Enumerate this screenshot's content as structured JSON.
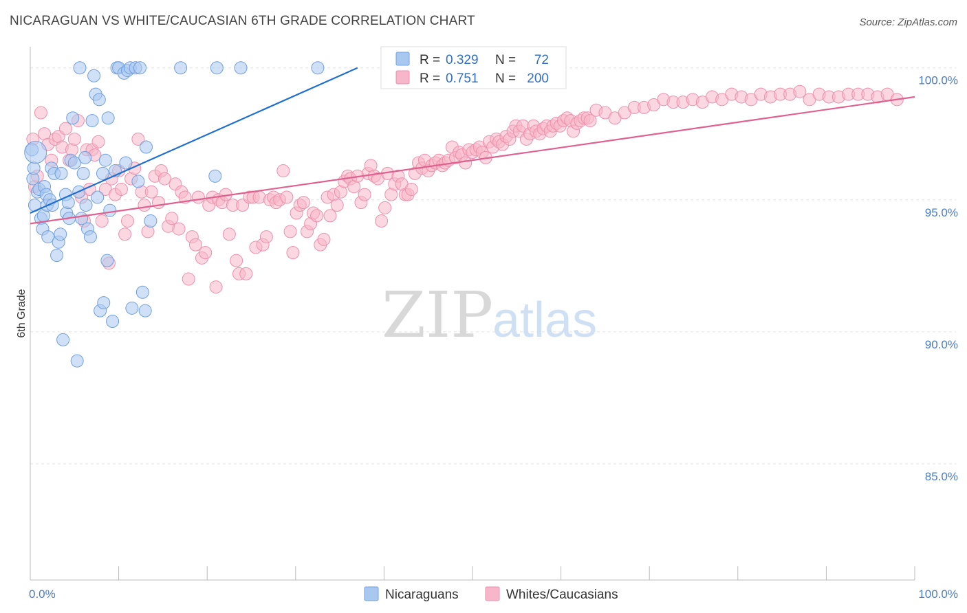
{
  "header": {
    "title": "NICARAGUAN VS WHITE/CAUCASIAN 6TH GRADE CORRELATION CHART",
    "source": "Source: ZipAtlas.com"
  },
  "watermark": {
    "zip": "ZIP",
    "atlas": "atlas"
  },
  "legend": {
    "r_label": "R =",
    "n_label": "N =",
    "rows": [
      {
        "r": "0.329",
        "n": "72"
      },
      {
        "r": "0.751",
        "n": "200"
      }
    ]
  },
  "colors": {
    "blue_fill": "#a9c8f0",
    "blue_stroke": "#6f9fe0",
    "blue_line": "#1f6fd0",
    "pink_fill": "#f7b6c9",
    "pink_stroke": "#ee8fac",
    "pink_line": "#e0608f",
    "tick_text": "#4a7cc7"
  },
  "chart_data": {
    "type": "scatter",
    "ylabel": "6th Grade",
    "xlabel": "",
    "xlim": [
      0,
      100
    ],
    "ylim": [
      80.6,
      100.8
    ],
    "x_tick_labels": [
      "0.0%",
      "100.0%"
    ],
    "y_ticks": [
      {
        "value": 100,
        "label": "100.0%"
      },
      {
        "value": 95,
        "label": "95.0%"
      },
      {
        "value": 90,
        "label": "90.0%"
      },
      {
        "value": 85,
        "label": "85.0%"
      }
    ],
    "grid": true,
    "legend_position": "top-center",
    "series": [
      {
        "name": "Nicaraguans",
        "color": "#a9c8f0",
        "r": 0.329,
        "n": 72,
        "trend": [
          [
            0,
            94.5
          ],
          [
            37,
            100.0
          ]
        ],
        "points": [
          [
            0.2,
            96.9
          ],
          [
            0.3,
            95.8
          ],
          [
            0.4,
            96.2
          ],
          [
            0.5,
            94.8
          ],
          [
            0.8,
            95.3
          ],
          [
            1.0,
            95.4
          ],
          [
            1.2,
            94.3
          ],
          [
            1.4,
            93.9
          ],
          [
            1.5,
            94.4
          ],
          [
            1.6,
            95.5
          ],
          [
            1.8,
            95.2
          ],
          [
            1.9,
            94.8
          ],
          [
            2.0,
            93.6
          ],
          [
            2.2,
            95.0
          ],
          [
            2.4,
            96.2
          ],
          [
            2.5,
            94.8
          ],
          [
            2.7,
            96.0
          ],
          [
            3.0,
            92.9
          ],
          [
            3.2,
            93.4
          ],
          [
            3.4,
            93.7
          ],
          [
            3.5,
            96.0
          ],
          [
            3.7,
            89.7
          ],
          [
            4.0,
            95.2
          ],
          [
            4.1,
            94.5
          ],
          [
            4.3,
            94.9
          ],
          [
            4.4,
            94.3
          ],
          [
            4.6,
            96.5
          ],
          [
            4.8,
            98.1
          ],
          [
            5.0,
            96.4
          ],
          [
            5.3,
            88.9
          ],
          [
            5.5,
            95.3
          ],
          [
            5.6,
            100.0
          ],
          [
            5.8,
            94.3
          ],
          [
            6.0,
            96.0
          ],
          [
            6.2,
            96.6
          ],
          [
            6.3,
            94.8
          ],
          [
            6.5,
            93.9
          ],
          [
            6.8,
            93.6
          ],
          [
            7.0,
            98.0
          ],
          [
            7.2,
            99.7
          ],
          [
            7.4,
            99.0
          ],
          [
            7.6,
            95.1
          ],
          [
            7.8,
            98.8
          ],
          [
            7.9,
            90.8
          ],
          [
            8.2,
            96.0
          ],
          [
            8.3,
            91.1
          ],
          [
            8.5,
            96.5
          ],
          [
            8.7,
            92.7
          ],
          [
            8.8,
            98.1
          ],
          [
            9.0,
            94.6
          ],
          [
            9.3,
            90.4
          ],
          [
            9.6,
            96.1
          ],
          [
            9.8,
            100.0
          ],
          [
            10.0,
            100.0
          ],
          [
            10.6,
            99.8
          ],
          [
            10.8,
            96.4
          ],
          [
            11.0,
            99.9
          ],
          [
            11.3,
            100.0
          ],
          [
            11.5,
            90.9
          ],
          [
            11.9,
            100.0
          ],
          [
            12.2,
            95.7
          ],
          [
            12.4,
            100.0
          ],
          [
            12.7,
            91.5
          ],
          [
            13.0,
            90.8
          ],
          [
            13.1,
            97.0
          ],
          [
            13.6,
            94.2
          ],
          [
            17.0,
            100.0
          ],
          [
            20.9,
            95.9
          ],
          [
            21.1,
            100.0
          ],
          [
            23.8,
            100.0
          ],
          [
            32.5,
            100.0
          ],
          [
            0.6,
            96.8
          ]
        ]
      },
      {
        "name": "Whites/Caucasians",
        "color": "#f7b6c9",
        "r": 0.751,
        "n": 200,
        "trend": [
          [
            0,
            94.1
          ],
          [
            100,
            98.9
          ]
        ],
        "points": [
          [
            0.3,
            97.3
          ],
          [
            0.5,
            95.5
          ],
          [
            0.8,
            95.9
          ],
          [
            1.2,
            98.3
          ],
          [
            1.6,
            97.5
          ],
          [
            2.0,
            97.1
          ],
          [
            2.4,
            96.5
          ],
          [
            2.8,
            97.3
          ],
          [
            3.2,
            97.4
          ],
          [
            3.6,
            97.0
          ],
          [
            4.0,
            97.7
          ],
          [
            4.4,
            96.5
          ],
          [
            4.7,
            96.9
          ],
          [
            5.0,
            97.3
          ],
          [
            5.4,
            98.0
          ],
          [
            5.8,
            95.1
          ],
          [
            6.1,
            94.2
          ],
          [
            6.4,
            96.9
          ],
          [
            6.7,
            95.4
          ],
          [
            7.0,
            96.9
          ],
          [
            7.3,
            96.7
          ],
          [
            7.7,
            97.2
          ],
          [
            8.1,
            94.2
          ],
          [
            8.5,
            95.4
          ],
          [
            8.9,
            92.6
          ],
          [
            9.2,
            95.8
          ],
          [
            9.6,
            95.2
          ],
          [
            10.0,
            96.1
          ],
          [
            10.3,
            95.4
          ],
          [
            10.7,
            93.7
          ],
          [
            11.0,
            94.2
          ],
          [
            11.4,
            95.8
          ],
          [
            11.8,
            96.2
          ],
          [
            12.2,
            97.3
          ],
          [
            12.6,
            95.3
          ],
          [
            12.9,
            94.8
          ],
          [
            13.3,
            93.8
          ],
          [
            13.7,
            95.3
          ],
          [
            14.1,
            95.9
          ],
          [
            14.5,
            94.9
          ],
          [
            14.8,
            96.1
          ],
          [
            15.2,
            95.8
          ],
          [
            15.6,
            94.0
          ],
          [
            16.0,
            94.3
          ],
          [
            16.4,
            95.6
          ],
          [
            16.8,
            93.9
          ],
          [
            17.1,
            95.3
          ],
          [
            17.5,
            95.1
          ],
          [
            17.9,
            92.0
          ],
          [
            18.3,
            93.6
          ],
          [
            18.7,
            93.3
          ],
          [
            19.0,
            95.1
          ],
          [
            19.4,
            92.8
          ],
          [
            19.8,
            93.0
          ],
          [
            20.2,
            94.8
          ],
          [
            20.6,
            95.1
          ],
          [
            21.0,
            91.7
          ],
          [
            21.3,
            95.0
          ],
          [
            21.7,
            94.9
          ],
          [
            22.1,
            95.2
          ],
          [
            22.5,
            93.7
          ],
          [
            22.9,
            94.8
          ],
          [
            23.3,
            92.7
          ],
          [
            23.6,
            92.2
          ],
          [
            24.0,
            94.8
          ],
          [
            24.4,
            92.2
          ],
          [
            24.8,
            95.1
          ],
          [
            25.2,
            95.1
          ],
          [
            25.5,
            93.2
          ],
          [
            25.9,
            95.1
          ],
          [
            26.3,
            93.3
          ],
          [
            26.7,
            93.6
          ],
          [
            27.1,
            95.0
          ],
          [
            27.5,
            95.1
          ],
          [
            27.8,
            94.9
          ],
          [
            28.2,
            95.0
          ],
          [
            28.6,
            96.1
          ],
          [
            29.0,
            95.1
          ],
          [
            29.4,
            93.8
          ],
          [
            29.7,
            93.0
          ],
          [
            30.1,
            94.5
          ],
          [
            30.5,
            94.8
          ],
          [
            30.9,
            94.9
          ],
          [
            31.3,
            93.8
          ],
          [
            31.7,
            94.1
          ],
          [
            32.0,
            94.5
          ],
          [
            32.4,
            94.4
          ],
          [
            32.8,
            93.3
          ],
          [
            33.2,
            93.5
          ],
          [
            33.6,
            95.1
          ],
          [
            33.9,
            94.4
          ],
          [
            34.3,
            95.2
          ],
          [
            34.7,
            94.8
          ],
          [
            35.1,
            95.3
          ],
          [
            35.5,
            95.7
          ],
          [
            35.9,
            95.9
          ],
          [
            36.2,
            95.8
          ],
          [
            36.6,
            95.5
          ],
          [
            37.0,
            95.9
          ],
          [
            37.4,
            94.9
          ],
          [
            37.8,
            95.2
          ],
          [
            38.2,
            96.0
          ],
          [
            38.5,
            96.3
          ],
          [
            38.9,
            95.9
          ],
          [
            39.3,
            95.8
          ],
          [
            39.7,
            94.2
          ],
          [
            40.1,
            94.7
          ],
          [
            40.4,
            96.0
          ],
          [
            40.8,
            95.2
          ],
          [
            41.2,
            95.6
          ],
          [
            41.6,
            95.9
          ],
          [
            42.0,
            95.6
          ],
          [
            42.4,
            95.2
          ],
          [
            42.7,
            95.2
          ],
          [
            43.1,
            95.4
          ],
          [
            43.5,
            96.0
          ],
          [
            43.9,
            96.4
          ],
          [
            44.3,
            96.2
          ],
          [
            44.6,
            96.5
          ],
          [
            45.0,
            96.1
          ],
          [
            45.4,
            96.3
          ],
          [
            45.8,
            96.4
          ],
          [
            46.2,
            96.5
          ],
          [
            46.6,
            96.3
          ],
          [
            46.9,
            96.4
          ],
          [
            47.3,
            96.5
          ],
          [
            47.7,
            97.0
          ],
          [
            48.1,
            96.6
          ],
          [
            48.5,
            96.8
          ],
          [
            48.8,
            96.7
          ],
          [
            49.2,
            96.4
          ],
          [
            49.6,
            96.9
          ],
          [
            50.0,
            96.8
          ],
          [
            50.4,
            96.9
          ],
          [
            50.8,
            97.0
          ],
          [
            51.1,
            96.8
          ],
          [
            51.5,
            96.6
          ],
          [
            51.9,
            97.2
          ],
          [
            52.3,
            97.0
          ],
          [
            52.7,
            97.3
          ],
          [
            53.0,
            97.2
          ],
          [
            53.4,
            97.1
          ],
          [
            53.8,
            97.4
          ],
          [
            54.2,
            97.3
          ],
          [
            54.6,
            97.6
          ],
          [
            54.9,
            97.8
          ],
          [
            55.3,
            97.6
          ],
          [
            55.7,
            97.8
          ],
          [
            56.1,
            97.3
          ],
          [
            56.5,
            97.5
          ],
          [
            56.9,
            97.8
          ],
          [
            57.2,
            97.6
          ],
          [
            57.6,
            97.5
          ],
          [
            58.0,
            97.7
          ],
          [
            58.4,
            97.8
          ],
          [
            58.8,
            97.6
          ],
          [
            59.1,
            97.8
          ],
          [
            59.5,
            97.9
          ],
          [
            59.9,
            97.8
          ],
          [
            60.3,
            98.0
          ],
          [
            60.7,
            98.1
          ],
          [
            61.1,
            98.0
          ],
          [
            61.4,
            97.6
          ],
          [
            61.8,
            97.9
          ],
          [
            62.2,
            98.0
          ],
          [
            62.6,
            98.1
          ],
          [
            63.0,
            98.1
          ],
          [
            63.3,
            98.0
          ],
          [
            64.0,
            98.4
          ],
          [
            65.0,
            98.3
          ],
          [
            66.1,
            98.1
          ],
          [
            67.2,
            98.3
          ],
          [
            68.3,
            98.5
          ],
          [
            69.4,
            98.5
          ],
          [
            70.5,
            98.6
          ],
          [
            71.6,
            98.8
          ],
          [
            72.7,
            98.7
          ],
          [
            73.8,
            98.7
          ],
          [
            74.9,
            98.8
          ],
          [
            76.0,
            98.7
          ],
          [
            77.1,
            98.9
          ],
          [
            78.2,
            98.8
          ],
          [
            79.3,
            99.0
          ],
          [
            80.4,
            98.9
          ],
          [
            81.5,
            98.8
          ],
          [
            82.6,
            99.0
          ],
          [
            83.7,
            98.9
          ],
          [
            84.8,
            99.0
          ],
          [
            85.9,
            99.0
          ],
          [
            87.0,
            99.1
          ],
          [
            88.1,
            98.8
          ],
          [
            89.2,
            99.0
          ],
          [
            90.3,
            98.9
          ],
          [
            91.4,
            98.9
          ],
          [
            92.5,
            99.0
          ],
          [
            93.6,
            99.0
          ],
          [
            94.7,
            99.0
          ],
          [
            95.8,
            98.9
          ],
          [
            96.9,
            99.0
          ],
          [
            98.0,
            98.8
          ]
        ]
      }
    ]
  },
  "bottom_legend": [
    {
      "label": "Nicaraguans"
    },
    {
      "label": "Whites/Caucasians"
    }
  ]
}
